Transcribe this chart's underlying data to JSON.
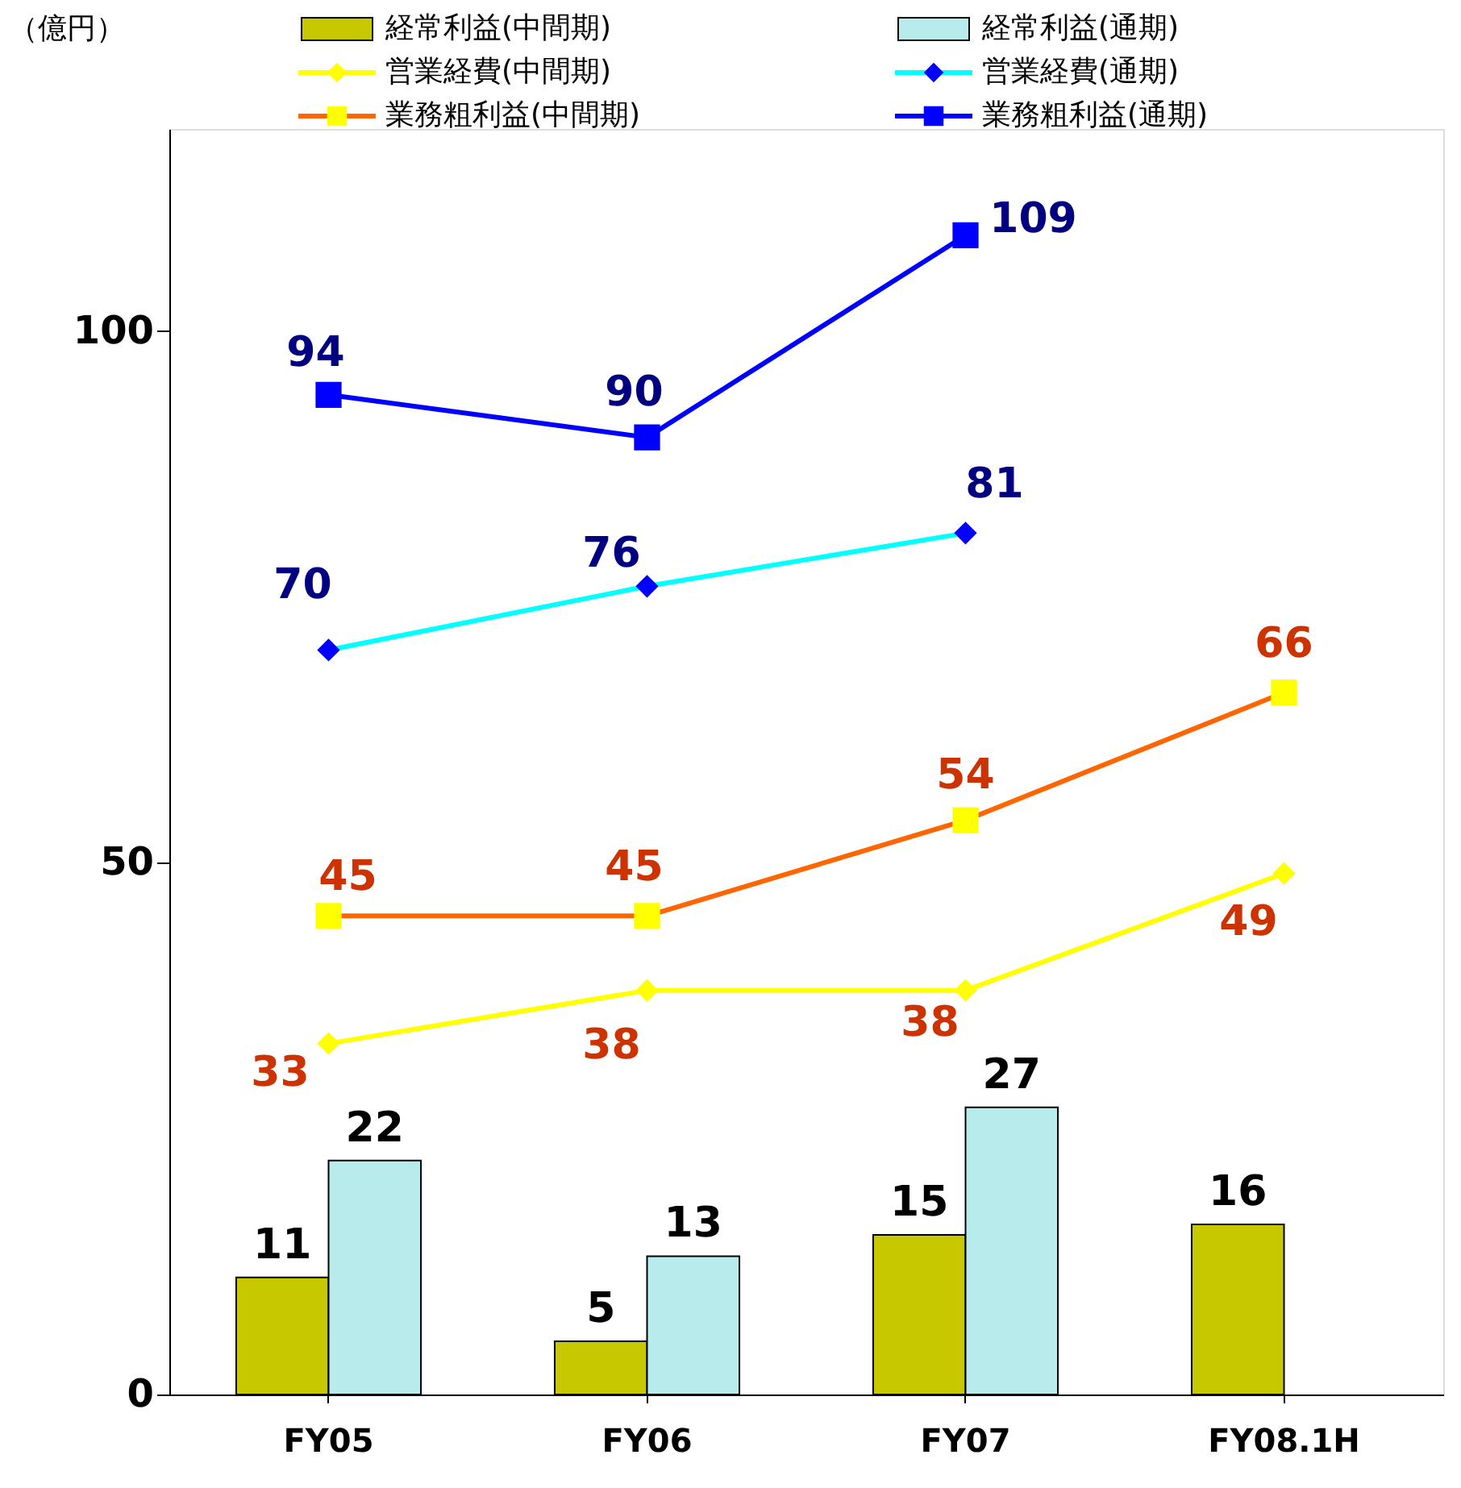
{
  "chart_data": {
    "type": "bar",
    "ylabel": "（億円）",
    "categories": [
      "FY05",
      "FY06",
      "FY07",
      "FY08.1H"
    ],
    "ylim": [
      0,
      119
    ],
    "yticks": [
      0,
      50,
      100
    ],
    "grid": false,
    "legend": "top",
    "data_labels": true,
    "series": [
      {
        "name": "経常利益(中間期)",
        "color": "#c8c800",
        "values": [
          11,
          5,
          15,
          16
        ]
      },
      {
        "name": "経常利益(通期)",
        "color": "#b8ecec",
        "values": [
          22,
          13,
          27,
          null
        ]
      },
      {
        "name": "営業経費(中間期)",
        "type": "line",
        "color": "#ffff00",
        "marker": "diamond",
        "colors": [
          "#ffff00",
          "#ffff00",
          "#ffff00",
          "#ffff00"
        ],
        "values": [
          33,
          38,
          38,
          49
        ]
      },
      {
        "name": "営業経費(通期)",
        "type": "line",
        "color": "#00ffff",
        "marker": "diamond",
        "colors": [
          "#0000ff",
          "#0000ff",
          "#0000ff",
          "#0000ff"
        ],
        "values": [
          70,
          76,
          81,
          null
        ]
      },
      {
        "name": "業務粗利益(中間期)",
        "type": "line",
        "color": "#ff6600",
        "marker": "square",
        "colors": [
          "#ffff00",
          "#ffff00",
          "#ffff00",
          "#ffff00"
        ],
        "values": [
          45,
          45,
          54,
          66
        ]
      },
      {
        "name": "業務粗利益(通期)",
        "type": "line",
        "color": "#0000ff",
        "marker": "square",
        "colors": [
          "#0000ff",
          "#0000ff",
          "#0000ff",
          "#0000ff"
        ],
        "values": [
          94,
          90,
          109,
          null
        ]
      }
    ]
  }
}
